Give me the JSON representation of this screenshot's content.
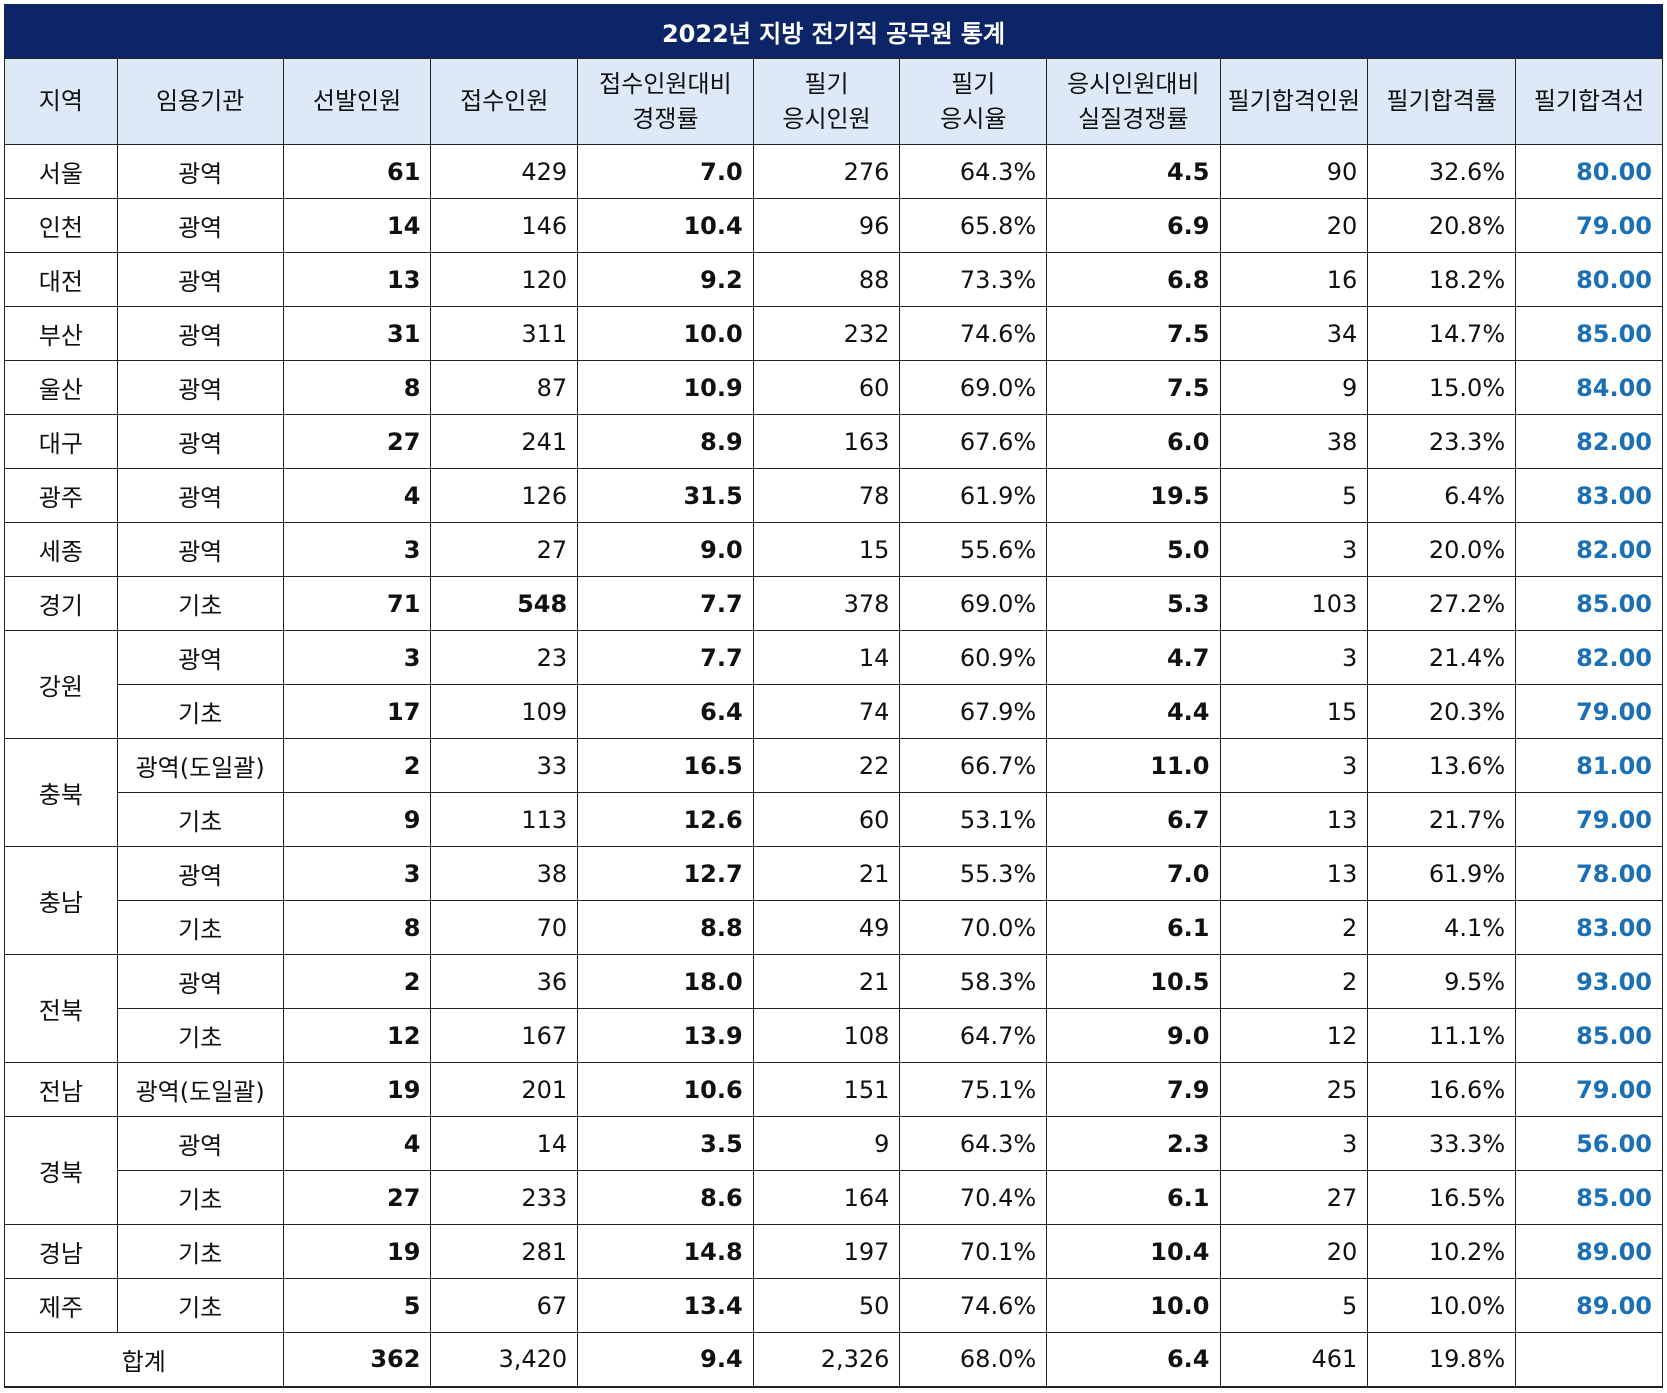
{
  "title": "2022년 지방 전기직 공무원 통계",
  "headers": [
    [
      "지역"
    ],
    [
      "임용기관"
    ],
    [
      "선발인원"
    ],
    [
      "접수인원"
    ],
    [
      "접수인원대비",
      "경쟁률"
    ],
    [
      "필기",
      "응시인원"
    ],
    [
      "필기",
      "응시율"
    ],
    [
      "응시인원대비",
      "실질경쟁률"
    ],
    [
      "필기합격인원"
    ],
    [
      "필기합격률"
    ],
    [
      "필기합격선"
    ]
  ],
  "rows": [
    {
      "region": "서울",
      "span": 1,
      "org": "광역",
      "sel": "61",
      "app": "429",
      "comp": "7.0",
      "takers": "276",
      "rate": "64.3%",
      "real": "4.5",
      "pass": "90",
      "passrate": "32.6%",
      "cut": "80.00"
    },
    {
      "region": "인천",
      "span": 1,
      "org": "광역",
      "sel": "14",
      "app": "146",
      "comp": "10.4",
      "takers": "96",
      "rate": "65.8%",
      "real": "6.9",
      "pass": "20",
      "passrate": "20.8%",
      "cut": "79.00"
    },
    {
      "region": "대전",
      "span": 1,
      "org": "광역",
      "sel": "13",
      "app": "120",
      "comp": "9.2",
      "takers": "88",
      "rate": "73.3%",
      "real": "6.8",
      "pass": "16",
      "passrate": "18.2%",
      "cut": "80.00"
    },
    {
      "region": "부산",
      "span": 1,
      "org": "광역",
      "sel": "31",
      "app": "311",
      "comp": "10.0",
      "takers": "232",
      "rate": "74.6%",
      "real": "7.5",
      "pass": "34",
      "passrate": "14.7%",
      "cut": "85.00"
    },
    {
      "region": "울산",
      "span": 1,
      "org": "광역",
      "sel": "8",
      "app": "87",
      "comp": "10.9",
      "takers": "60",
      "rate": "69.0%",
      "real": "7.5",
      "pass": "9",
      "passrate": "15.0%",
      "cut": "84.00"
    },
    {
      "region": "대구",
      "span": 1,
      "org": "광역",
      "sel": "27",
      "app": "241",
      "comp": "8.9",
      "takers": "163",
      "rate": "67.6%",
      "real": "6.0",
      "pass": "38",
      "passrate": "23.3%",
      "cut": "82.00"
    },
    {
      "region": "광주",
      "span": 1,
      "org": "광역",
      "sel": "4",
      "app": "126",
      "comp": "31.5",
      "takers": "78",
      "rate": "61.9%",
      "real": "19.5",
      "pass": "5",
      "passrate": "6.4%",
      "cut": "83.00"
    },
    {
      "region": "세종",
      "span": 1,
      "org": "광역",
      "sel": "3",
      "app": "27",
      "comp": "9.0",
      "takers": "15",
      "rate": "55.6%",
      "real": "5.0",
      "pass": "3",
      "passrate": "20.0%",
      "cut": "82.00"
    },
    {
      "region": "경기",
      "span": 1,
      "org": "기초",
      "sel": "71",
      "app": "548",
      "appBold": true,
      "comp": "7.7",
      "takers": "378",
      "rate": "69.0%",
      "real": "5.3",
      "pass": "103",
      "passrate": "27.2%",
      "cut": "85.00"
    },
    {
      "region": "강원",
      "span": 2,
      "org": "광역",
      "sel": "3",
      "app": "23",
      "comp": "7.7",
      "takers": "14",
      "rate": "60.9%",
      "real": "4.7",
      "pass": "3",
      "passrate": "21.4%",
      "cut": "82.00"
    },
    {
      "region": null,
      "org": "기초",
      "sel": "17",
      "app": "109",
      "comp": "6.4",
      "takers": "74",
      "rate": "67.9%",
      "real": "4.4",
      "pass": "15",
      "passrate": "20.3%",
      "cut": "79.00"
    },
    {
      "region": "충북",
      "span": 2,
      "org": "광역(도일괄)",
      "sel": "2",
      "app": "33",
      "comp": "16.5",
      "takers": "22",
      "rate": "66.7%",
      "real": "11.0",
      "pass": "3",
      "passrate": "13.6%",
      "cut": "81.00"
    },
    {
      "region": null,
      "org": "기초",
      "sel": "9",
      "app": "113",
      "comp": "12.6",
      "takers": "60",
      "rate": "53.1%",
      "real": "6.7",
      "pass": "13",
      "passrate": "21.7%",
      "cut": "79.00"
    },
    {
      "region": "충남",
      "span": 2,
      "org": "광역",
      "sel": "3",
      "app": "38",
      "comp": "12.7",
      "takers": "21",
      "rate": "55.3%",
      "real": "7.0",
      "pass": "13",
      "passrate": "61.9%",
      "cut": "78.00"
    },
    {
      "region": null,
      "org": "기초",
      "sel": "8",
      "app": "70",
      "comp": "8.8",
      "takers": "49",
      "rate": "70.0%",
      "real": "6.1",
      "pass": "2",
      "passrate": "4.1%",
      "cut": "83.00"
    },
    {
      "region": "전북",
      "span": 2,
      "org": "광역",
      "sel": "2",
      "app": "36",
      "comp": "18.0",
      "takers": "21",
      "rate": "58.3%",
      "real": "10.5",
      "pass": "2",
      "passrate": "9.5%",
      "cut": "93.00"
    },
    {
      "region": null,
      "org": "기초",
      "sel": "12",
      "app": "167",
      "comp": "13.9",
      "takers": "108",
      "rate": "64.7%",
      "real": "9.0",
      "pass": "12",
      "passrate": "11.1%",
      "cut": "85.00"
    },
    {
      "region": "전남",
      "span": 1,
      "org": "광역(도일괄)",
      "sel": "19",
      "app": "201",
      "comp": "10.6",
      "takers": "151",
      "rate": "75.1%",
      "real": "7.9",
      "pass": "25",
      "passrate": "16.6%",
      "cut": "79.00"
    },
    {
      "region": "경북",
      "span": 2,
      "org": "광역",
      "sel": "4",
      "app": "14",
      "comp": "3.5",
      "takers": "9",
      "rate": "64.3%",
      "real": "2.3",
      "pass": "3",
      "passrate": "33.3%",
      "cut": "56.00"
    },
    {
      "region": null,
      "org": "기초",
      "sel": "27",
      "app": "233",
      "comp": "8.6",
      "takers": "164",
      "rate": "70.4%",
      "real": "6.1",
      "pass": "27",
      "passrate": "16.5%",
      "cut": "85.00"
    },
    {
      "region": "경남",
      "span": 1,
      "org": "기초",
      "sel": "19",
      "app": "281",
      "comp": "14.8",
      "takers": "197",
      "rate": "70.1%",
      "real": "10.4",
      "pass": "20",
      "passrate": "10.2%",
      "cut": "89.00"
    },
    {
      "region": "제주",
      "span": 1,
      "org": "기초",
      "sel": "5",
      "app": "67",
      "comp": "13.4",
      "takers": "50",
      "rate": "74.6%",
      "real": "10.0",
      "pass": "5",
      "passrate": "10.0%",
      "cut": "89.00"
    }
  ],
  "total": {
    "label": "합계",
    "sel": "362",
    "app": "3,420",
    "comp": "9.4",
    "takers": "2,326",
    "rate": "68.0%",
    "real": "6.4",
    "pass": "461",
    "passrate": "19.8%",
    "cut": ""
  },
  "colors": {
    "title_bg": "#0b2566",
    "header_bg": "#dde9f7",
    "cutoff_text": "#1a6fb5"
  }
}
